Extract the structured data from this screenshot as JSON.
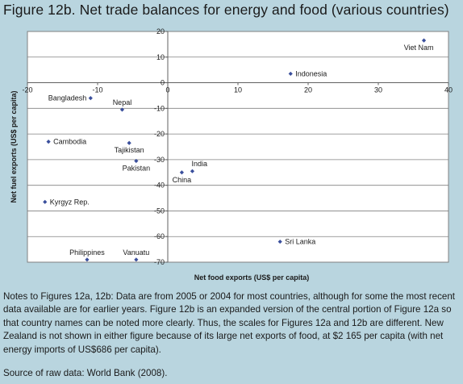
{
  "figure_title": "Figure 12b.  Net trade balances for energy and food (various countries)",
  "notes": "Notes to Figures 12a, 12b:  Data are from 2005 or 2004 for most countries, although for some the most recent data available are for earlier years.  Figure 12b is an expanded version of the central portion of Figure 12a so that country names can be noted more clearly.  Thus, the scales for Figures 12a and 12b are different.  New Zealand is not shown in either figure because of its large net exports of food, at $2 165 per capita (with net energy imports of US$686 per capita).",
  "source": "Source of raw data:  World Bank (2008).",
  "colors": {
    "background": "#b9d5df",
    "plot_background": "#ffffff",
    "marker": "#3a4f9c",
    "text": "#1a1a1a"
  },
  "chart_data": {
    "type": "scatter",
    "xlabel": "Net food exports (US$ per capita)",
    "ylabel": "Net fuel exports (US$ per capita)",
    "xlim": [
      -20,
      40
    ],
    "ylim": [
      -70,
      20
    ],
    "x_ticks": [
      -20,
      -10,
      0,
      10,
      20,
      30,
      40
    ],
    "y_ticks": [
      20,
      10,
      0,
      -10,
      -20,
      -30,
      -40,
      -50,
      -60,
      -70
    ],
    "grid": "horizontal",
    "marker": "diamond",
    "points": [
      {
        "label": "Viet Nam",
        "x": 36.5,
        "y": 16.5,
        "label_pos": "below-left"
      },
      {
        "label": "Indonesia",
        "x": 17.5,
        "y": 3.5,
        "label_pos": "right"
      },
      {
        "label": "Bangladesh",
        "x": -11,
        "y": -6,
        "label_pos": "left"
      },
      {
        "label": "Nepal",
        "x": -6.5,
        "y": -10.5,
        "label_pos": "above"
      },
      {
        "label": "Cambodia",
        "x": -17,
        "y": -23,
        "label_pos": "right"
      },
      {
        "label": "Tajikistan",
        "x": -5.5,
        "y": -23.5,
        "label_pos": "below"
      },
      {
        "label": "Pakistan",
        "x": -4.5,
        "y": -30.5,
        "label_pos": "below"
      },
      {
        "label": "India",
        "x": 3.5,
        "y": -34.5,
        "label_pos": "above-right"
      },
      {
        "label": "China",
        "x": 2,
        "y": -35,
        "label_pos": "below"
      },
      {
        "label": "Kyrgyz Rep.",
        "x": -17.5,
        "y": -46.5,
        "label_pos": "right"
      },
      {
        "label": "Sri Lanka",
        "x": 16,
        "y": -62,
        "label_pos": "right"
      },
      {
        "label": "Philippines",
        "x": -11.5,
        "y": -69,
        "label_pos": "above"
      },
      {
        "label": "Vanuatu",
        "x": -4.5,
        "y": -69,
        "label_pos": "above"
      }
    ]
  }
}
